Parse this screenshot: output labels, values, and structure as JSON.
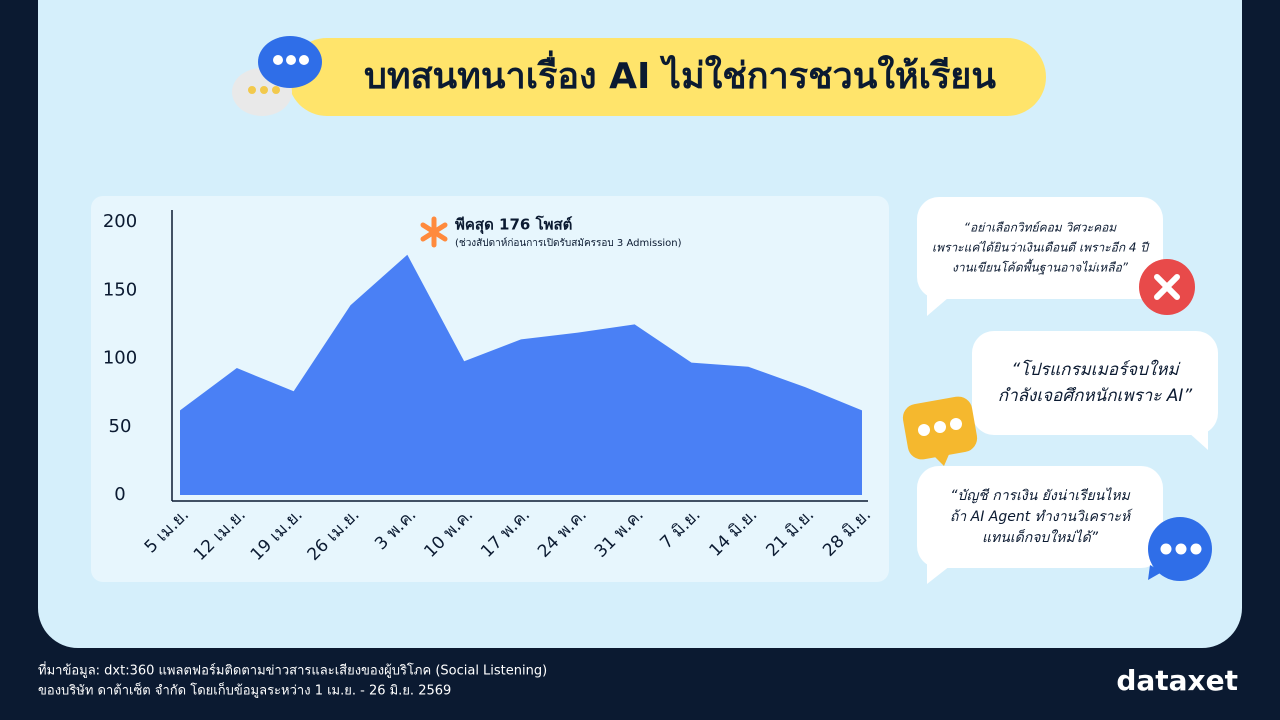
{
  "chart_data": {
    "type": "area",
    "title": "บทสนทนาเรื่อง AI ไม่ใช่การชวนให้เรียน",
    "annotation": {
      "title": "พีคสุด 176 โพสต์",
      "subtitle": "(ช่วงสัปดาห์ก่อนการเปิดรับสมัครรอบ 3 Admission)"
    },
    "categories": [
      "5 เม.ย.",
      "12 เม.ย.",
      "19 เม.ย.",
      "26 เม.ย.",
      "3 พ.ค.",
      "10 พ.ค.",
      "17 พ.ค.",
      "24 พ.ค.",
      "31 พ.ค.",
      "7 มิ.ย.",
      "14 มิ.ย.",
      "21 มิ.ย.",
      "28 มิ.ย."
    ],
    "values": [
      62,
      93,
      76,
      139,
      176,
      98,
      114,
      119,
      125,
      97,
      94,
      79,
      62
    ],
    "color": "#4a80f5",
    "ylim": [
      0,
      200
    ],
    "yticks": [
      0,
      50,
      100,
      150,
      200
    ],
    "grid": false
  },
  "quotes": [
    [
      "“อย่าเลือกวิทย์คอม วิศวะคอม",
      "เพราะแค่ได้ยินว่าเงินเดือนดี เพราะอีก 4 ปี",
      "งานเขียนโค้ดพื้นฐานอาจไม่เหลือ”"
    ],
    [
      "“โปรแกรมเมอร์จบใหม่",
      "กำลังเจอศึกหนักเพราะ AI”"
    ],
    [
      "“บัญชี การเงิน ยังน่าเรียนไหม",
      "ถ้า AI Agent ทำงานวิเคราะห์",
      "แทนเด็กจบใหม่ได้”"
    ]
  ],
  "footer": [
    "ที่มาข้อมูล: dxt:360 แพลตฟอร์มติดตามข่าวสารและเสียงของผู้บริโภค (Social Listening)",
    "ของบริษัท ดาต้าเซ็ต จำกัด โดยเก็บข้อมูลระหว่าง 1 เม.ย. - 26 มิ.ย. 2569"
  ],
  "logo": "dataxet"
}
